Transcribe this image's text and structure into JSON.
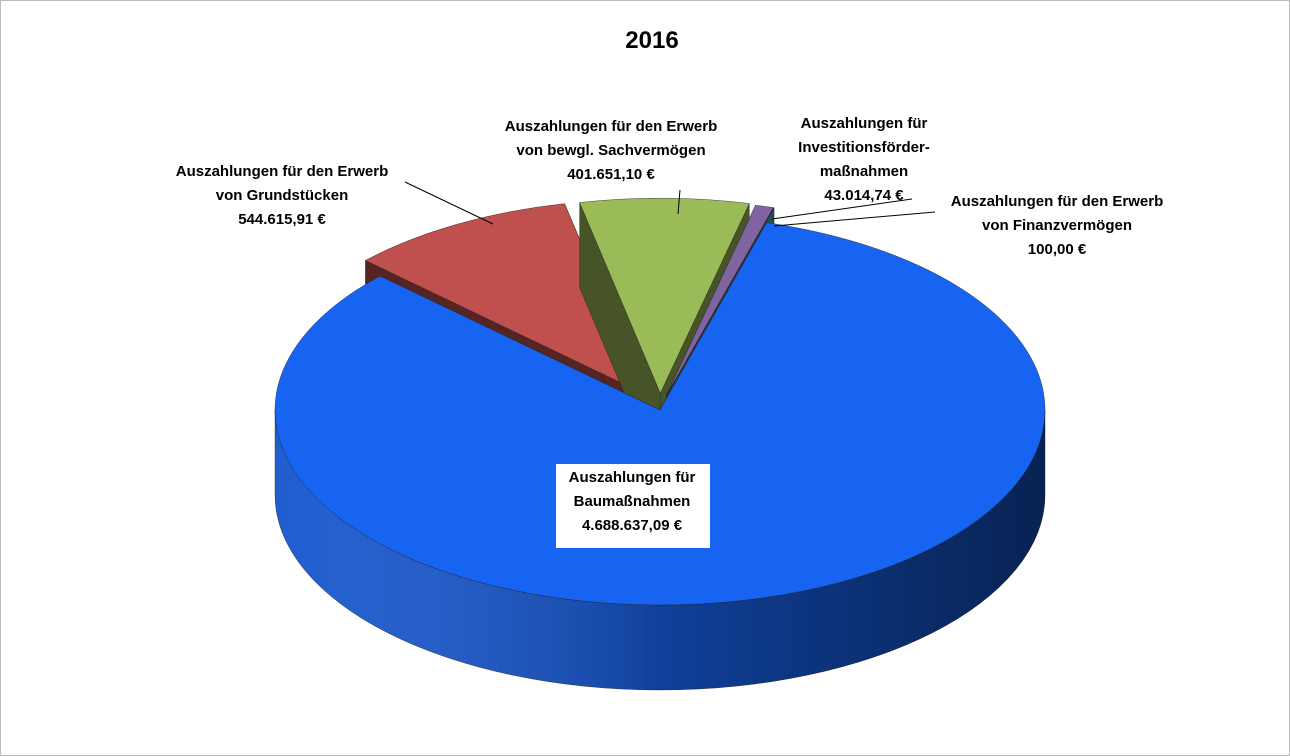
{
  "chart_data": {
    "type": "pie",
    "title": "2016",
    "categories": [
      [
        "Auszahlungen für",
        "Baumaßnahmen"
      ],
      [
        "Auszahlungen für den Erwerb",
        "von Grundstücken"
      ],
      [
        "Auszahlungen für den Erwerb",
        "von bewgl. Sachvermögen"
      ],
      [
        "Auszahlungen für",
        "Investitionsförder-",
        "maßnahmen"
      ],
      [
        "Auszahlungen für den Erwerb",
        "von Finanzvermögen"
      ]
    ],
    "values": [
      4688637.09,
      544615.91,
      401651.1,
      43014.74,
      100.0
    ],
    "value_labels": [
      "4.688.637,09 €",
      "544.615,91 €",
      "401.651,10 €",
      "43.014,74 €",
      "100,00 €"
    ],
    "colors": [
      "#1764f2",
      "#c0504d",
      "#9bbb59",
      "#8064a2",
      "#4bacc6"
    ]
  }
}
